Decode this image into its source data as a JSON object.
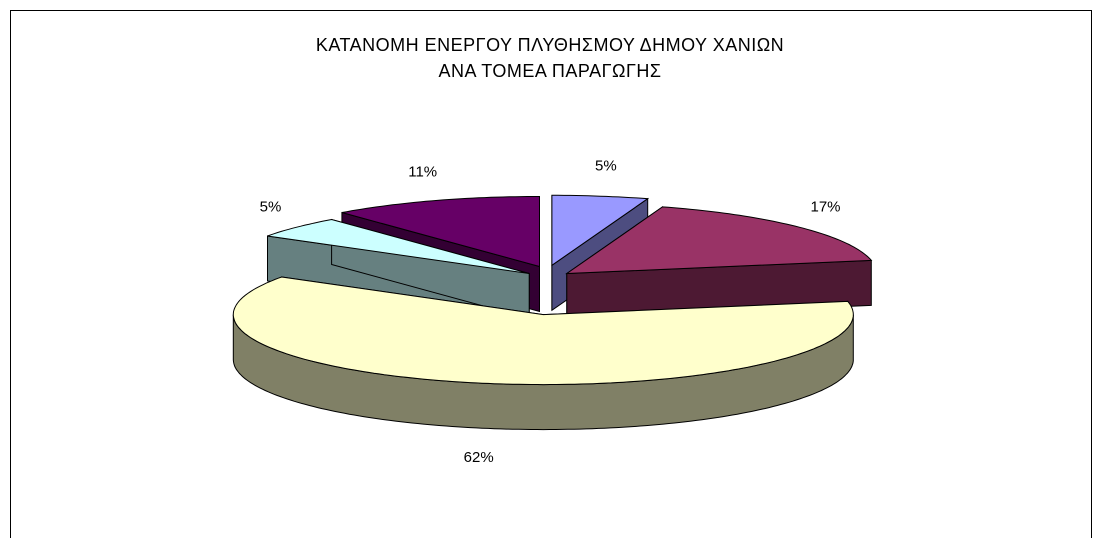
{
  "chart_data": {
    "type": "pie",
    "title": "ΚΑΤΑΝΟΜΗ ΕΝΕΡΓΟΥ ΠΛΥΘΗΣΜΟΥ ΔΗΜΟΥ ΧΑΝΙΩΝ ΑΝΑ ΤΟΜΕΑ ΠΑΡΑΓΩΓΗΣ",
    "values": [
      5,
      17,
      62,
      5,
      11
    ],
    "value_labels": [
      "5%",
      "17%",
      "62%",
      "5%",
      "11%"
    ],
    "colors": [
      "#9999ff",
      "#993366",
      "#ffffcc",
      "#ccffff",
      "#660066"
    ],
    "side_colors": [
      "#4d4d80",
      "#4d1933",
      "#808066",
      "#668080",
      "#330033"
    ]
  }
}
